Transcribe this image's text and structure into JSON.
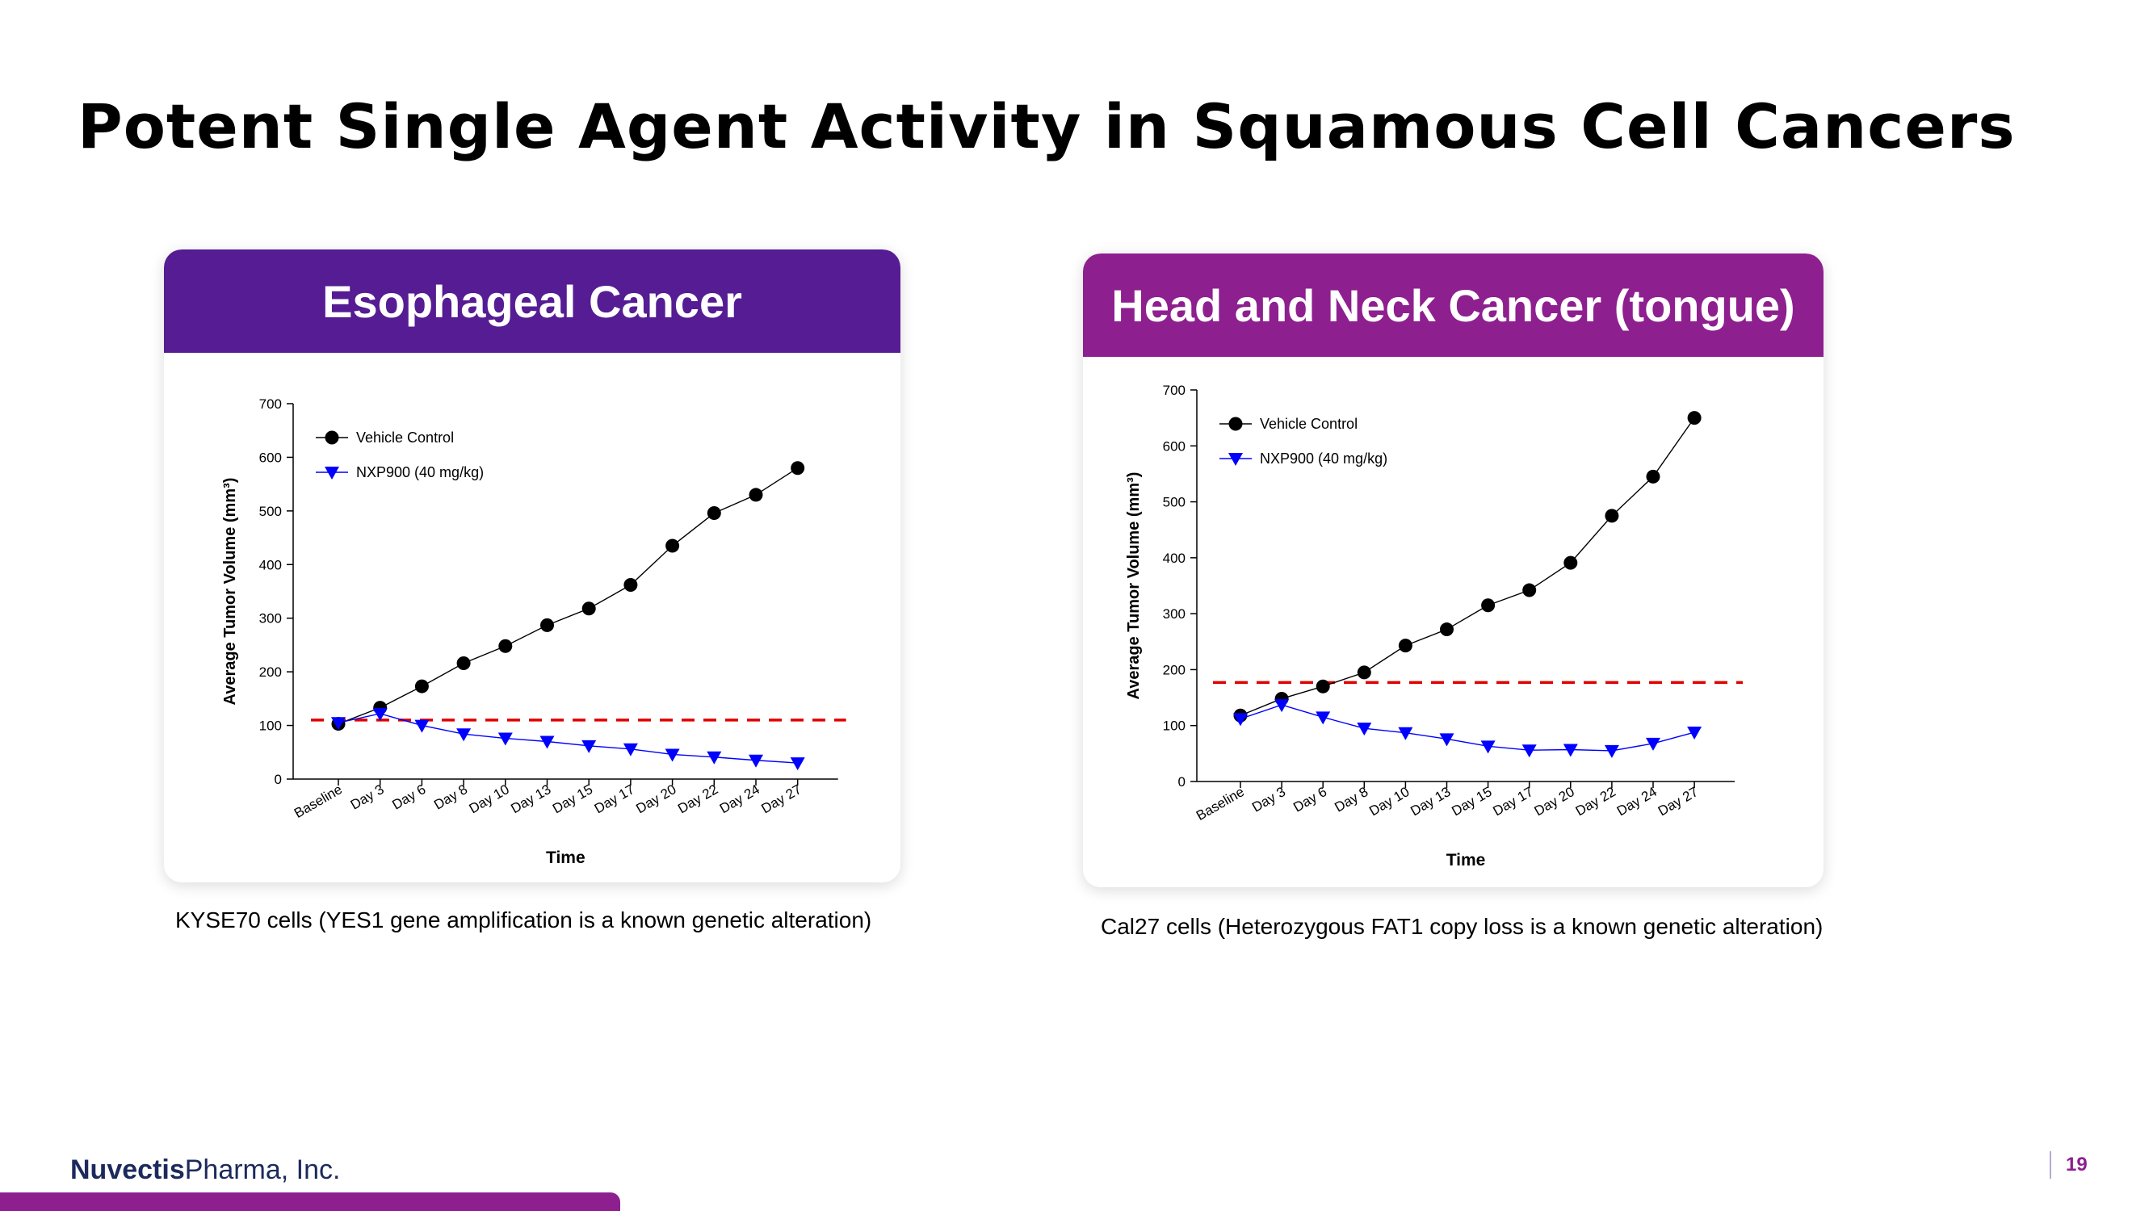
{
  "slide": {
    "title": "Potent Single Agent Activity in Squamous Cell Cancers",
    "page_number": "19"
  },
  "footer": {
    "company_bold": "Nuvectis",
    "company_rest": "Pharma, Inc."
  },
  "colors": {
    "left_header": "#551c93",
    "right_header": "#8e1f8f",
    "vehicle_series": "#000000",
    "treatment_series": "#0000ff",
    "threshold_line": "#e00000"
  },
  "panels": [
    {
      "header": "Esophageal Cancer",
      "caption": "KYSE70 cells (YES1 gene amplification is a known genetic alteration)"
    },
    {
      "header": "Head and Neck Cancer (tongue)",
      "caption": "Cal27 cells (Heterozygous FAT1 copy loss is a known genetic alteration)"
    }
  ],
  "chart_data": [
    {
      "type": "line",
      "xlabel": "Time",
      "ylabel": "Average Tumor Volume (mm³)",
      "ylim": [
        0,
        700
      ],
      "yticks": [
        "0",
        "100",
        "200",
        "300",
        "400",
        "500",
        "600",
        "700"
      ],
      "categories": [
        "Baseline",
        "Day 3",
        "Day 6",
        "Day 8",
        "Day 10",
        "Day 13",
        "Day 15",
        "Day 17",
        "Day 20",
        "Day 22",
        "Day 24",
        "Day 27"
      ],
      "legend_placement": "top-left",
      "series": [
        {
          "name": "Vehicle Control",
          "marker": "circle",
          "color": "#000000",
          "values": [
            103,
            133,
            173,
            216,
            248,
            287,
            318,
            362,
            435,
            496,
            530,
            580
          ]
        },
        {
          "name": "NXP900 (40 mg/kg)",
          "marker": "triangle-down",
          "color": "#0000ff",
          "values": [
            105,
            122,
            100,
            84,
            76,
            70,
            62,
            56,
            46,
            41,
            35,
            30
          ]
        }
      ],
      "threshold": {
        "value": 110,
        "style": "dashed",
        "color": "#e00000"
      }
    },
    {
      "type": "line",
      "xlabel": "Time",
      "ylabel": "Average Tumor Volume (mm³)",
      "ylim": [
        0,
        700
      ],
      "yticks": [
        "0",
        "100",
        "200",
        "300",
        "400",
        "500",
        "600",
        "700"
      ],
      "categories": [
        "Baseline",
        "Day 3",
        "Day 6",
        "Day 8",
        "Day 10",
        "Day 13",
        "Day 15",
        "Day 17",
        "Day 20",
        "Day 22",
        "Day 24",
        "Day 27"
      ],
      "legend_placement": "top-left",
      "series": [
        {
          "name": "Vehicle Control",
          "marker": "circle",
          "color": "#000000",
          "values": [
            118,
            148,
            170,
            195,
            243,
            272,
            315,
            342,
            391,
            475,
            545,
            650
          ]
        },
        {
          "name": "NXP900 (40 mg/kg)",
          "marker": "triangle-down",
          "color": "#0000ff",
          "values": [
            112,
            137,
            115,
            95,
            87,
            76,
            63,
            56,
            57,
            55,
            68,
            88
          ]
        }
      ],
      "threshold": {
        "value": 177,
        "style": "dashed",
        "color": "#e00000"
      }
    }
  ]
}
